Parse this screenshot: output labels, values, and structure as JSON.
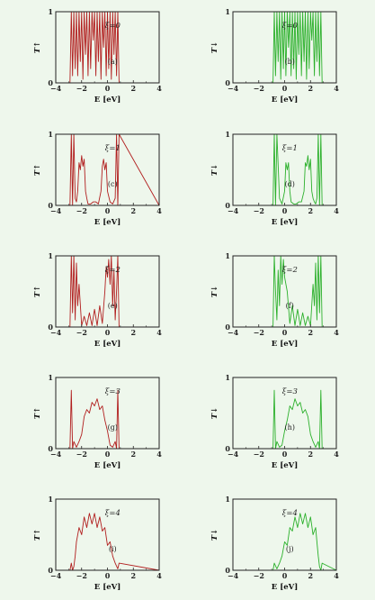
{
  "chart_data": [
    {
      "panel": "(a)",
      "xi_label": "ξ=0",
      "type": "line",
      "color": "#b11e1e",
      "ylabel": "T↑",
      "xlabel": "E [eV]",
      "xlim": [
        -4,
        4
      ],
      "ylim": [
        0,
        1
      ],
      "xticks": [
        "−4",
        "−2",
        "0",
        "2",
        "4"
      ],
      "yticks": [
        "0",
        "1"
      ],
      "x": [
        -4,
        -2.9,
        -2.8,
        -2.7,
        -2.6,
        -2.5,
        -2.4,
        -2.3,
        -2.2,
        -2.1,
        -2.0,
        -1.9,
        -1.8,
        -1.7,
        -1.6,
        -1.5,
        -1.4,
        -1.3,
        -1.2,
        -1.1,
        -1.0,
        -0.9,
        -0.8,
        -0.7,
        -0.6,
        -0.5,
        -0.4,
        -0.3,
        -0.2,
        -0.1,
        0.0,
        0.1,
        0.2,
        0.3,
        0.4,
        0.5,
        0.6,
        0.7,
        0.8,
        0.9,
        4
      ],
      "y": [
        0,
        0,
        1,
        0.1,
        1,
        0.2,
        1,
        0.1,
        1,
        0.3,
        1,
        0.05,
        1,
        0.4,
        1,
        0.1,
        1,
        0.2,
        1,
        0.6,
        1,
        0.1,
        1,
        0.3,
        1,
        0.05,
        1,
        0.5,
        1,
        0.1,
        1,
        0.2,
        1,
        0.05,
        1,
        0.4,
        1,
        0.1,
        1,
        0,
        0
      ]
    },
    {
      "panel": "(b)",
      "xi_label": "ξ=0",
      "type": "line",
      "color": "#2bb02b",
      "ylabel": "T↓",
      "xlabel": "E [eV]",
      "xlim": [
        -4,
        4
      ],
      "ylim": [
        0,
        1
      ],
      "xticks": [
        "−4",
        "−2",
        "0",
        "2",
        "4"
      ],
      "yticks": [
        "0",
        "1"
      ],
      "x": [
        -4,
        -0.9,
        -0.8,
        -0.7,
        -0.6,
        -0.5,
        -0.4,
        -0.3,
        -0.2,
        -0.1,
        0.0,
        0.1,
        0.2,
        0.3,
        0.4,
        0.5,
        0.6,
        0.7,
        0.8,
        0.9,
        1.0,
        1.1,
        1.2,
        1.3,
        1.4,
        1.5,
        1.6,
        1.7,
        1.8,
        1.9,
        2.0,
        2.1,
        2.2,
        2.3,
        2.4,
        2.5,
        2.6,
        2.7,
        2.8,
        2.9,
        4
      ],
      "y": [
        0,
        0,
        1,
        0.1,
        1,
        0.3,
        1,
        0.05,
        1,
        0.2,
        1,
        0.1,
        1,
        0.5,
        1,
        0.1,
        1,
        0.2,
        1,
        0.05,
        1,
        0.4,
        1,
        0.1,
        1,
        0.3,
        1,
        0.05,
        1,
        0.2,
        1,
        0.6,
        1,
        0.1,
        1,
        0.3,
        1,
        0.1,
        1,
        0,
        0
      ]
    },
    {
      "panel": "(c)",
      "xi_label": "ξ=1",
      "type": "line",
      "color": "#b11e1e",
      "ylabel": "T↑",
      "xlabel": "E [eV]",
      "xlim": [
        -4,
        4
      ],
      "ylim": [
        0,
        1
      ],
      "xticks": [
        "−4",
        "−2",
        "0",
        "2",
        "4"
      ],
      "yticks": [
        "0",
        "1"
      ],
      "x": [
        -4,
        -2.9,
        -2.8,
        -2.7,
        -2.6,
        -2.5,
        -2.4,
        -2.3,
        -2.2,
        -2.1,
        -2.0,
        -1.9,
        -1.8,
        -1.7,
        -1.6,
        -1.5,
        -1.3,
        -1.1,
        -0.9,
        -0.7,
        -0.5,
        -0.4,
        -0.3,
        -0.2,
        -0.1,
        0.0,
        0.2,
        0.4,
        0.6,
        0.7,
        0.8,
        0.9,
        4
      ],
      "y": [
        0,
        0,
        1,
        0,
        1,
        0.1,
        0.05,
        0.2,
        0.6,
        0.5,
        0.7,
        0.55,
        0.65,
        0.2,
        0.1,
        0.02,
        0.02,
        0.05,
        0.05,
        0.02,
        0.2,
        0.55,
        0.65,
        0.5,
        0.6,
        0.2,
        0.05,
        0.02,
        0.1,
        1,
        0,
        1,
        0
      ]
    },
    {
      "panel": "(d)",
      "xi_label": "ξ=1",
      "type": "line",
      "color": "#2bb02b",
      "ylabel": "T↓",
      "xlabel": "E [eV]",
      "xlim": [
        -4,
        4
      ],
      "ylim": [
        0,
        1
      ],
      "xticks": [
        "−4",
        "−2",
        "0",
        "2",
        "4"
      ],
      "yticks": [
        "0",
        "1"
      ],
      "x": [
        -4,
        -0.9,
        -0.8,
        -0.7,
        -0.6,
        -0.4,
        -0.2,
        0.0,
        0.1,
        0.2,
        0.3,
        0.4,
        0.5,
        0.7,
        0.9,
        1.1,
        1.3,
        1.5,
        1.6,
        1.7,
        1.8,
        1.9,
        2.0,
        2.1,
        2.2,
        2.3,
        2.4,
        2.5,
        2.6,
        2.7,
        2.8,
        2.9,
        4
      ],
      "y": [
        0,
        0,
        1,
        0,
        1,
        0.1,
        0.02,
        0.2,
        0.6,
        0.5,
        0.6,
        0.2,
        0.05,
        0.02,
        0.02,
        0.05,
        0.05,
        0.2,
        0.6,
        0.55,
        0.7,
        0.5,
        0.65,
        0.2,
        0.1,
        0.05,
        0.02,
        0.1,
        1,
        0,
        1,
        0,
        0
      ]
    },
    {
      "panel": "(e)",
      "xi_label": "ξ=2",
      "type": "line",
      "color": "#b11e1e",
      "ylabel": "T↑",
      "xlabel": "E [eV]",
      "xlim": [
        -4,
        4
      ],
      "ylim": [
        0,
        1
      ],
      "xticks": [
        "−4",
        "−2",
        "0",
        "2",
        "4"
      ],
      "yticks": [
        "0",
        "1"
      ],
      "x": [
        -4,
        -2.9,
        -2.8,
        -2.7,
        -2.6,
        -2.5,
        -2.4,
        -2.3,
        -2.2,
        -2.0,
        -1.8,
        -1.6,
        -1.4,
        -1.2,
        -1.0,
        -0.8,
        -0.6,
        -0.4,
        -0.2,
        -0.1,
        0.0,
        0.1,
        0.2,
        0.3,
        0.4,
        0.5,
        0.6,
        0.7,
        0.8,
        0.9,
        4
      ],
      "y": [
        0,
        0,
        1,
        0.2,
        1,
        0.1,
        0.9,
        0.3,
        0.6,
        0.02,
        0.15,
        0.02,
        0.2,
        0.02,
        0.25,
        0.02,
        0.3,
        0.05,
        0.5,
        0.85,
        0.7,
        0.95,
        0.6,
        1,
        0.3,
        0.8,
        0.1,
        0.5,
        1,
        0,
        0
      ]
    },
    {
      "panel": "(f)",
      "xi_label": "ξ=2",
      "type": "line",
      "color": "#2bb02b",
      "ylabel": "T↓",
      "xlabel": "E [eV]",
      "xlim": [
        -4,
        4
      ],
      "ylim": [
        0,
        1
      ],
      "xticks": [
        "−4",
        "−2",
        "0",
        "2",
        "4"
      ],
      "yticks": [
        "0",
        "1"
      ],
      "x": [
        -4,
        -0.9,
        -0.8,
        -0.7,
        -0.6,
        -0.5,
        -0.4,
        -0.3,
        -0.2,
        -0.1,
        0.0,
        0.2,
        0.4,
        0.6,
        0.8,
        1.0,
        1.2,
        1.4,
        1.6,
        1.8,
        2.0,
        2.2,
        2.3,
        2.4,
        2.5,
        2.6,
        2.7,
        2.8,
        2.9,
        4
      ],
      "y": [
        0,
        0,
        1,
        0.5,
        0.1,
        0.8,
        0.3,
        1,
        0.6,
        0.95,
        0.7,
        0.5,
        0.05,
        0.3,
        0.02,
        0.25,
        0.02,
        0.2,
        0.02,
        0.15,
        0.02,
        0.6,
        0.3,
        0.9,
        0.1,
        1,
        0.2,
        1,
        0,
        0
      ]
    },
    {
      "panel": "(g)",
      "xi_label": "ξ=3",
      "type": "line",
      "color": "#b11e1e",
      "ylabel": "T↑",
      "xlabel": "E [eV]",
      "xlim": [
        -4,
        4
      ],
      "ylim": [
        0,
        1
      ],
      "xticks": [
        "−4",
        "−2",
        "0",
        "2",
        "4"
      ],
      "yticks": [
        "0",
        "1"
      ],
      "x": [
        -4,
        -2.9,
        -2.8,
        -2.7,
        -2.6,
        -2.4,
        -2.2,
        -2.0,
        -1.8,
        -1.6,
        -1.4,
        -1.2,
        -1.0,
        -0.8,
        -0.6,
        -0.4,
        -0.2,
        0.0,
        0.2,
        0.4,
        0.6,
        0.7,
        0.8,
        0.9,
        4
      ],
      "y": [
        0,
        0,
        0.82,
        0,
        0.1,
        0.02,
        0.1,
        0.2,
        0.45,
        0.55,
        0.5,
        0.65,
        0.6,
        0.7,
        0.55,
        0.6,
        0.4,
        0.25,
        0.05,
        0.02,
        0.1,
        0,
        0.82,
        0,
        0
      ]
    },
    {
      "panel": "(h)",
      "xi_label": "ξ=3",
      "type": "line",
      "color": "#2bb02b",
      "ylabel": "T↓",
      "xlabel": "E [eV]",
      "xlim": [
        -4,
        4
      ],
      "ylim": [
        0,
        1
      ],
      "xticks": [
        "−4",
        "−2",
        "0",
        "2",
        "4"
      ],
      "yticks": [
        "0",
        "1"
      ],
      "x": [
        -4,
        -0.9,
        -0.8,
        -0.7,
        -0.6,
        -0.4,
        -0.2,
        0.0,
        0.2,
        0.4,
        0.6,
        0.8,
        1.0,
        1.2,
        1.4,
        1.6,
        1.8,
        2.0,
        2.2,
        2.4,
        2.6,
        2.7,
        2.8,
        2.9,
        4
      ],
      "y": [
        0,
        0,
        0.82,
        0,
        0.1,
        0.02,
        0.05,
        0.25,
        0.4,
        0.6,
        0.55,
        0.7,
        0.6,
        0.65,
        0.5,
        0.55,
        0.45,
        0.2,
        0.1,
        0.02,
        0.1,
        0,
        0.82,
        0,
        0
      ]
    },
    {
      "panel": "(i)",
      "xi_label": "ξ=4",
      "type": "line",
      "color": "#b11e1e",
      "ylabel": "T↑",
      "xlabel": "E [eV]",
      "xlim": [
        -4,
        4
      ],
      "ylim": [
        0,
        1
      ],
      "xticks": [
        "−4",
        "−2",
        "0",
        "2",
        "4"
      ],
      "yticks": [
        "0",
        "1"
      ],
      "x": [
        -4,
        -2.9,
        -2.8,
        -2.7,
        -2.6,
        -2.5,
        -2.4,
        -2.2,
        -2.0,
        -1.8,
        -1.6,
        -1.4,
        -1.2,
        -1.0,
        -0.8,
        -0.6,
        -0.4,
        -0.2,
        0.0,
        0.2,
        0.4,
        0.6,
        0.8,
        0.9,
        4
      ],
      "y": [
        0,
        0,
        0.1,
        0,
        0.05,
        0.2,
        0.4,
        0.6,
        0.5,
        0.75,
        0.6,
        0.8,
        0.65,
        0.8,
        0.6,
        0.75,
        0.55,
        0.6,
        0.35,
        0.4,
        0.2,
        0.1,
        0.02,
        0.1,
        0
      ]
    },
    {
      "panel": "(j)",
      "xi_label": "ξ=4",
      "type": "line",
      "color": "#2bb02b",
      "ylabel": "T↓",
      "xlabel": "E [eV]",
      "xlim": [
        -4,
        4
      ],
      "ylim": [
        0,
        1
      ],
      "xticks": [
        "−4",
        "−2",
        "0",
        "2",
        "4"
      ],
      "yticks": [
        "0",
        "1"
      ],
      "x": [
        -4,
        -0.9,
        -0.8,
        -0.6,
        -0.4,
        -0.2,
        0.0,
        0.2,
        0.4,
        0.6,
        0.8,
        1.0,
        1.2,
        1.4,
        1.6,
        1.8,
        2.0,
        2.2,
        2.4,
        2.5,
        2.6,
        2.7,
        2.8,
        2.9,
        4
      ],
      "y": [
        0,
        0,
        0.1,
        0.02,
        0.1,
        0.2,
        0.4,
        0.35,
        0.6,
        0.55,
        0.75,
        0.6,
        0.8,
        0.65,
        0.8,
        0.6,
        0.75,
        0.5,
        0.6,
        0.4,
        0.2,
        0.05,
        0,
        0.1,
        0
      ]
    }
  ]
}
